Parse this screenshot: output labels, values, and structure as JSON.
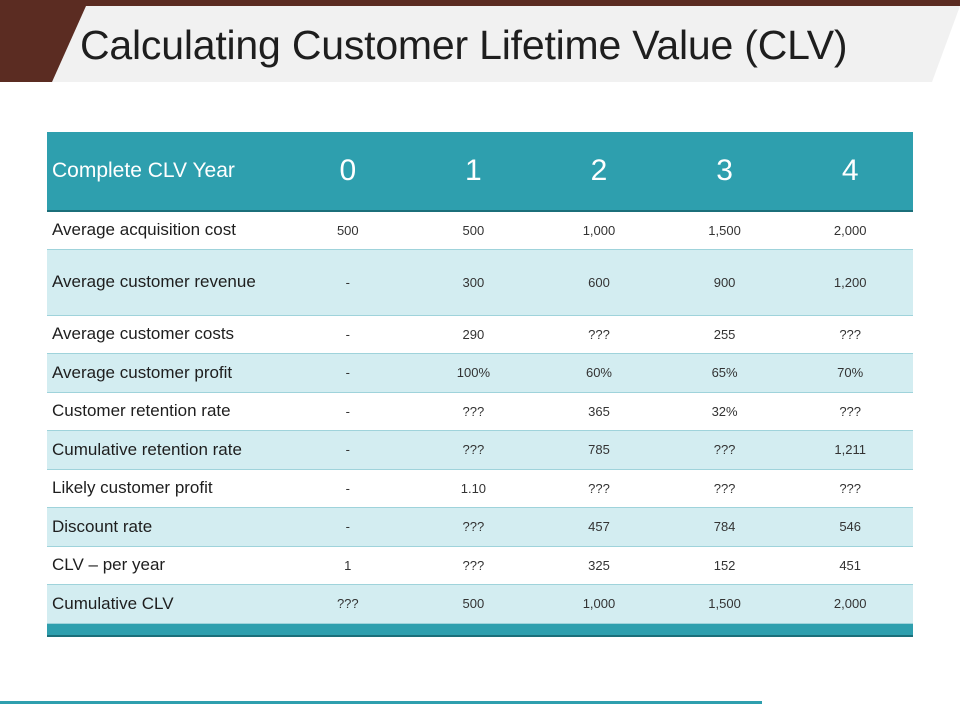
{
  "title": "Calculating Customer Lifetime Value (CLV)",
  "colors": {
    "brand_dark": "#5b2c22",
    "teal": "#2e9fae",
    "row_alt": "#d3edf1"
  },
  "table": {
    "header_label": "Complete CLV Year",
    "years": [
      "0",
      "1",
      "2",
      "3",
      "4"
    ],
    "rows": [
      {
        "label": "Average acquisition cost",
        "values": [
          "500",
          "500",
          "1,000",
          "1,500",
          "2,000"
        ]
      },
      {
        "label": "Average customer revenue",
        "values": [
          "-",
          "300",
          "600",
          "900",
          "1,200"
        ]
      },
      {
        "label": "Average customer costs",
        "values": [
          "-",
          "290",
          "???",
          "255",
          "???"
        ]
      },
      {
        "label": "Average customer profit",
        "values": [
          "-",
          "100%",
          "60%",
          "65%",
          "70%"
        ]
      },
      {
        "label": "Customer retention rate",
        "values": [
          "-",
          "???",
          "365",
          "32%",
          "???"
        ]
      },
      {
        "label": "Cumulative retention rate",
        "values": [
          "-",
          "???",
          "785",
          "???",
          "1,211"
        ]
      },
      {
        "label": "Likely customer profit",
        "values": [
          "-",
          "1.10",
          "???",
          "???",
          "???"
        ]
      },
      {
        "label": "Discount rate",
        "values": [
          "-",
          "???",
          "457",
          "784",
          "546"
        ]
      },
      {
        "label": "CLV – per year",
        "values": [
          "1",
          "???",
          "325",
          "152",
          "451"
        ]
      },
      {
        "label": "Cumulative CLV",
        "values": [
          "???",
          "500",
          "1,000",
          "1,500",
          "2,000"
        ]
      }
    ]
  }
}
